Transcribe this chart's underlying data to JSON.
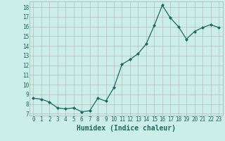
{
  "x": [
    0,
    1,
    2,
    3,
    4,
    5,
    6,
    7,
    8,
    9,
    10,
    11,
    12,
    13,
    14,
    15,
    16,
    17,
    18,
    19,
    20,
    21,
    22,
    23
  ],
  "y": [
    8.6,
    8.5,
    8.2,
    7.6,
    7.5,
    7.6,
    7.2,
    7.3,
    8.6,
    8.3,
    9.7,
    12.1,
    12.6,
    13.2,
    14.2,
    16.1,
    18.2,
    16.9,
    16.0,
    14.7,
    15.5,
    15.9,
    16.2,
    15.9
  ],
  "line_color": "#1a6b5e",
  "marker": "D",
  "marker_size": 2.0,
  "linewidth": 0.9,
  "xlabel": "Humidex (Indice chaleur)",
  "xlabel_fontsize": 7,
  "xlabel_color": "#1a6b5e",
  "ylabel_ticks": [
    7,
    8,
    9,
    10,
    11,
    12,
    13,
    14,
    15,
    16,
    17,
    18
  ],
  "ylim": [
    6.8,
    18.6
  ],
  "xlim": [
    -0.5,
    23.5
  ],
  "xtick_labels": [
    "0",
    "1",
    "2",
    "3",
    "4",
    "5",
    "6",
    "7",
    "8",
    "9",
    "10",
    "11",
    "12",
    "13",
    "14",
    "15",
    "16",
    "17",
    "18",
    "19",
    "20",
    "21",
    "22",
    "23"
  ],
  "background_color": "#cceee8",
  "grid_color": "#b0b0b0",
  "tick_color": "#1a6b5e",
  "tick_fontsize": 5.5,
  "xlabel_fontweight": "bold"
}
